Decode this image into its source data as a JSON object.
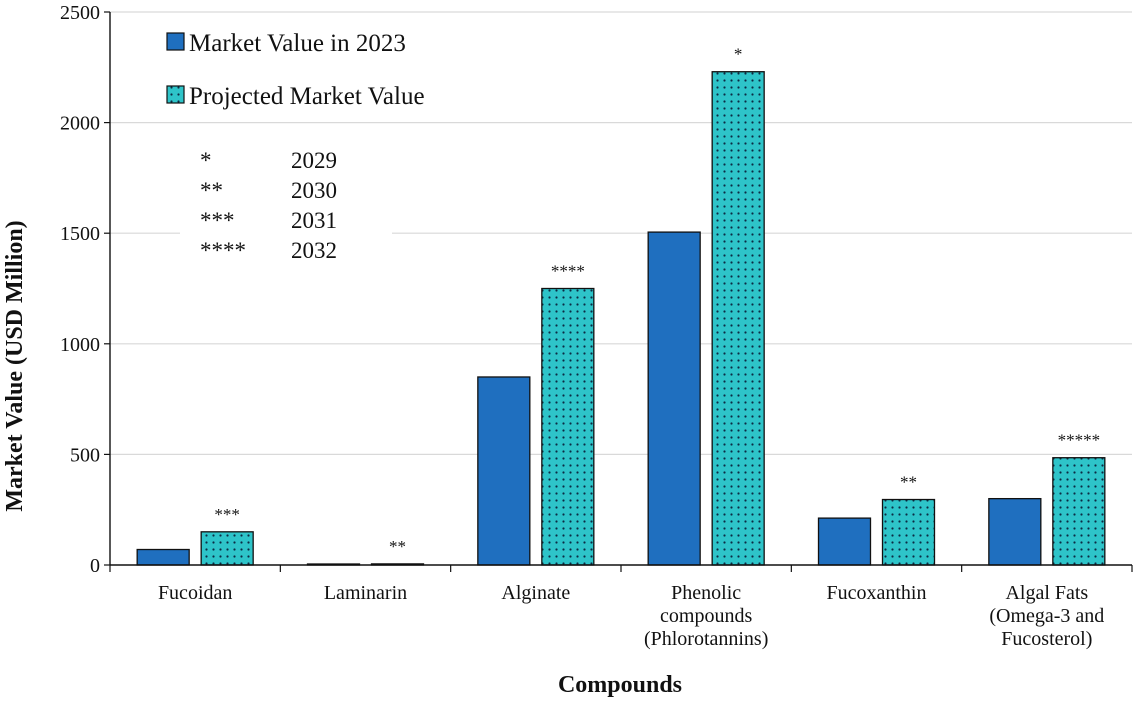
{
  "chart_data": {
    "type": "bar",
    "title": "",
    "xlabel": "Compounds",
    "ylabel": "Market Value (USD Million)",
    "ylim": [
      0,
      2500
    ],
    "yticks": [
      0,
      500,
      1000,
      1500,
      2000,
      2500
    ],
    "grid": true,
    "legend_position": "top-left",
    "categories": [
      [
        "Fucoidan"
      ],
      [
        "Laminarin"
      ],
      [
        "Alginate"
      ],
      [
        "Phenolic",
        "compounds",
        "(Phlorotannins)"
      ],
      [
        "Fucoxanthin"
      ],
      [
        "Algal Fats",
        "(Omega-3 and",
        "Fucosterol)"
      ]
    ],
    "series": [
      {
        "name": "Market Value in 2023",
        "values": [
          70,
          3,
          850,
          1505,
          212,
          300
        ],
        "color": "#1f6fbf",
        "pattern": "solid"
      },
      {
        "name": "Projected Market Value",
        "values": [
          150,
          5,
          1250,
          2230,
          296,
          485
        ],
        "color": "#2ec4c9",
        "pattern": "dots",
        "annotations": [
          "***",
          "**",
          "****",
          "*",
          "**",
          "*****"
        ]
      }
    ],
    "year_notes": [
      {
        "marker": "*",
        "year": "2029"
      },
      {
        "marker": "**",
        "year": "2030"
      },
      {
        "marker": "***",
        "year": "2031"
      },
      {
        "marker": "****",
        "year": "2032"
      }
    ]
  }
}
